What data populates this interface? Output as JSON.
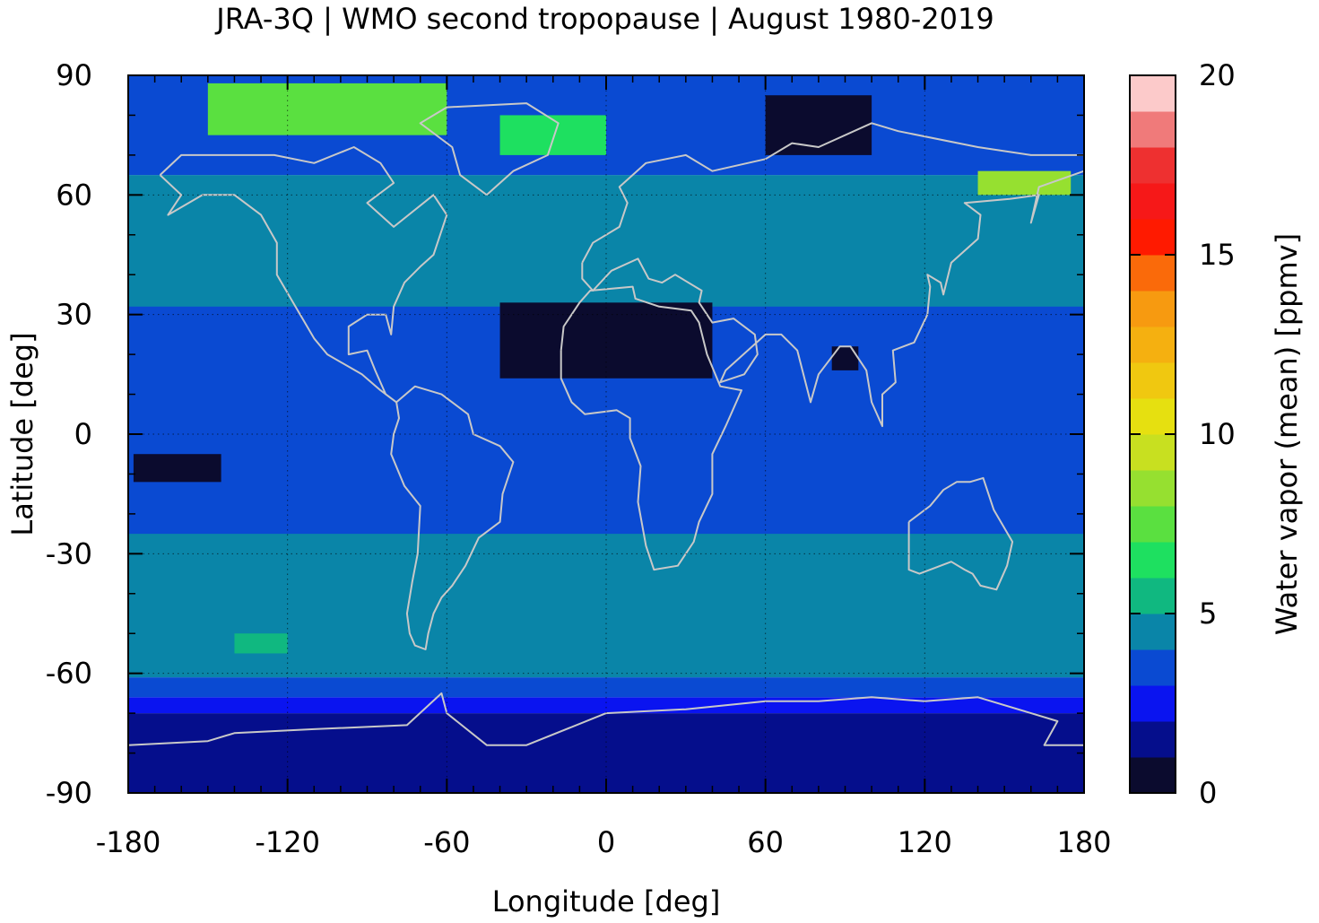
{
  "chart_data": {
    "type": "heatmap",
    "title": "JRA-3Q | WMO second tropopause | August 1980-2019",
    "xlabel": "Longitude [deg]",
    "ylabel": "Latitude [deg]",
    "colorbar_label": "Water vapor (mean) [ppmv]",
    "xlim": [
      -180,
      180
    ],
    "ylim": [
      -90,
      90
    ],
    "xticks": [
      -180,
      -120,
      -60,
      0,
      60,
      120,
      180
    ],
    "yticks": [
      -90,
      -60,
      -30,
      0,
      30,
      60,
      90
    ],
    "colorbar_range": [
      0,
      20
    ],
    "colorbar_ticks": [
      0,
      5,
      10,
      15,
      20
    ],
    "grid": true,
    "colorbar_levels": [
      {
        "min": 0,
        "max": 1,
        "color": "#0b0b2e"
      },
      {
        "min": 1,
        "max": 2,
        "color": "#050e8c"
      },
      {
        "min": 2,
        "max": 3,
        "color": "#0a14f0"
      },
      {
        "min": 3,
        "max": 4,
        "color": "#0a4ad2"
      },
      {
        "min": 4,
        "max": 5,
        "color": "#0a85a8"
      },
      {
        "min": 5,
        "max": 6,
        "color": "#10b880"
      },
      {
        "min": 6,
        "max": 7,
        "color": "#1ee060"
      },
      {
        "min": 7,
        "max": 8,
        "color": "#5ae040"
      },
      {
        "min": 8,
        "max": 9,
        "color": "#96e030"
      },
      {
        "min": 9,
        "max": 10,
        "color": "#c8e020"
      },
      {
        "min": 10,
        "max": 11,
        "color": "#e6e010"
      },
      {
        "min": 11,
        "max": 12,
        "color": "#f0c810"
      },
      {
        "min": 12,
        "max": 13,
        "color": "#f5b010"
      },
      {
        "min": 13,
        "max": 14,
        "color": "#f79a10"
      },
      {
        "min": 14,
        "max": 15,
        "color": "#fa6a0a"
      },
      {
        "min": 15,
        "max": 16,
        "color": "#ff1a00"
      },
      {
        "min": 16,
        "max": 17,
        "color": "#f61818"
      },
      {
        "min": 17,
        "max": 18,
        "color": "#ee3030"
      },
      {
        "min": 18,
        "max": 19,
        "color": "#f07a7a"
      },
      {
        "min": 19,
        "max": 20,
        "color": "#fccaca"
      }
    ],
    "zonal_bands": [
      {
        "lat_min": -90,
        "lat_max": -70,
        "value": 1.5
      },
      {
        "lat_min": -70,
        "lat_max": -66,
        "value": 2.5
      },
      {
        "lat_min": -66,
        "lat_max": -61,
        "value": 3.5
      },
      {
        "lat_min": -61,
        "lat_max": 65,
        "value": 4.5
      },
      {
        "lat_min": 65,
        "lat_max": 90,
        "value": 3.5
      }
    ],
    "regions": [
      {
        "name": "tropical belt",
        "lon": [
          -180,
          180
        ],
        "lat": [
          -25,
          32
        ],
        "value": 3.5
      },
      {
        "name": "north africa arabia",
        "lon": [
          -40,
          40
        ],
        "lat": [
          14,
          33
        ],
        "value": 0.5
      },
      {
        "name": "bay of bengal",
        "lon": [
          85,
          95
        ],
        "lat": [
          16,
          22
        ],
        "value": 0.5
      },
      {
        "name": "tropical pacific south",
        "lon": [
          -178,
          -145
        ],
        "lat": [
          -12,
          -5
        ],
        "value": 0.5
      },
      {
        "name": "north pacific arctic",
        "lon": [
          140,
          175
        ],
        "lat": [
          60,
          66
        ],
        "value": 8.5
      },
      {
        "name": "siberian arctic",
        "lon": [
          60,
          100
        ],
        "lat": [
          70,
          85
        ],
        "value": 0.5
      },
      {
        "name": "canadian arctic",
        "lon": [
          -150,
          -60
        ],
        "lat": [
          75,
          88
        ],
        "value": 7.5
      },
      {
        "name": "greenland sea",
        "lon": [
          -40,
          0
        ],
        "lat": [
          70,
          80
        ],
        "value": 6.5
      },
      {
        "name": "southern pacific",
        "lon": [
          -140,
          -120
        ],
        "lat": [
          -55,
          -50
        ],
        "value": 5.5
      }
    ],
    "coastlines": [
      {
        "name": "north america",
        "points": [
          [
            -168,
            65
          ],
          [
            -160,
            70
          ],
          [
            -140,
            70
          ],
          [
            -125,
            70
          ],
          [
            -110,
            68
          ],
          [
            -95,
            72
          ],
          [
            -85,
            68
          ],
          [
            -80,
            63
          ],
          [
            -90,
            58
          ],
          [
            -80,
            52
          ],
          [
            -65,
            60
          ],
          [
            -60,
            55
          ],
          [
            -65,
            45
          ],
          [
            -70,
            42
          ],
          [
            -76,
            38
          ],
          [
            -80,
            32
          ],
          [
            -81,
            25
          ],
          [
            -83,
            30
          ],
          [
            -90,
            30
          ],
          [
            -97,
            27
          ],
          [
            -97,
            20
          ],
          [
            -90,
            21
          ],
          [
            -87,
            16
          ],
          [
            -83,
            10
          ],
          [
            -79,
            8
          ],
          [
            -85,
            11
          ],
          [
            -92,
            15
          ],
          [
            -105,
            20
          ],
          [
            -110,
            24
          ],
          [
            -117,
            32
          ],
          [
            -124,
            40
          ],
          [
            -124,
            48
          ],
          [
            -130,
            55
          ],
          [
            -140,
            60
          ],
          [
            -152,
            60
          ],
          [
            -165,
            55
          ],
          [
            -160,
            60
          ],
          [
            -168,
            65
          ]
        ]
      },
      {
        "name": "south america",
        "points": [
          [
            -79,
            8
          ],
          [
            -72,
            12
          ],
          [
            -62,
            10
          ],
          [
            -52,
            5
          ],
          [
            -50,
            0
          ],
          [
            -40,
            -3
          ],
          [
            -35,
            -7
          ],
          [
            -39,
            -15
          ],
          [
            -40,
            -22
          ],
          [
            -48,
            -26
          ],
          [
            -53,
            -33
          ],
          [
            -58,
            -38
          ],
          [
            -62,
            -41
          ],
          [
            -65,
            -45
          ],
          [
            -67,
            -50
          ],
          [
            -68,
            -54
          ],
          [
            -72,
            -53
          ],
          [
            -74,
            -50
          ],
          [
            -75,
            -45
          ],
          [
            -73,
            -37
          ],
          [
            -71,
            -30
          ],
          [
            -70,
            -18
          ],
          [
            -76,
            -13
          ],
          [
            -81,
            -5
          ],
          [
            -80,
            0
          ],
          [
            -78,
            4
          ],
          [
            -79,
            8
          ]
        ]
      },
      {
        "name": "africa",
        "points": [
          [
            -17,
            21
          ],
          [
            -16,
            27
          ],
          [
            -10,
            33
          ],
          [
            -6,
            36
          ],
          [
            10,
            37
          ],
          [
            11,
            34
          ],
          [
            20,
            32
          ],
          [
            32,
            31
          ],
          [
            35,
            28
          ],
          [
            38,
            20
          ],
          [
            43,
            12
          ],
          [
            51,
            11
          ],
          [
            45,
            2
          ],
          [
            40,
            -5
          ],
          [
            40,
            -15
          ],
          [
            35,
            -22
          ],
          [
            33,
            -27
          ],
          [
            27,
            -33
          ],
          [
            18,
            -34
          ],
          [
            15,
            -28
          ],
          [
            12,
            -17
          ],
          [
            13,
            -8
          ],
          [
            9,
            -1
          ],
          [
            9,
            4
          ],
          [
            4,
            6
          ],
          [
            -8,
            5
          ],
          [
            -13,
            8
          ],
          [
            -17,
            14
          ],
          [
            -17,
            21
          ]
        ]
      },
      {
        "name": "eurasia",
        "points": [
          [
            -9,
            43
          ],
          [
            -9,
            39
          ],
          [
            -5,
            36
          ],
          [
            2,
            41
          ],
          [
            12,
            44
          ],
          [
            16,
            39
          ],
          [
            21,
            38
          ],
          [
            26,
            40
          ],
          [
            36,
            36
          ],
          [
            35,
            33
          ],
          [
            40,
            28
          ],
          [
            48,
            29
          ],
          [
            56,
            25
          ],
          [
            57,
            20
          ],
          [
            52,
            15
          ],
          [
            43,
            13
          ],
          [
            45,
            16
          ],
          [
            60,
            25
          ],
          [
            66,
            25
          ],
          [
            72,
            21
          ],
          [
            77,
            8
          ],
          [
            80,
            15
          ],
          [
            88,
            22
          ],
          [
            92,
            22
          ],
          [
            98,
            16
          ],
          [
            100,
            8
          ],
          [
            104,
            2
          ],
          [
            104,
            10
          ],
          [
            109,
            13
          ],
          [
            108,
            21
          ],
          [
            116,
            23
          ],
          [
            121,
            30
          ],
          [
            122,
            37
          ],
          [
            121,
            40
          ],
          [
            126,
            38
          ],
          [
            127,
            35
          ],
          [
            130,
            43
          ],
          [
            140,
            49
          ],
          [
            141,
            55
          ],
          [
            135,
            58
          ],
          [
            152,
            59
          ],
          [
            163,
            60
          ],
          [
            160,
            53
          ],
          [
            163,
            62
          ],
          [
            180,
            66
          ],
          [
            180,
            70
          ],
          [
            160,
            70
          ],
          [
            140,
            72
          ],
          [
            110,
            76
          ],
          [
            100,
            78
          ],
          [
            80,
            72
          ],
          [
            70,
            73
          ],
          [
            60,
            69
          ],
          [
            40,
            66
          ],
          [
            30,
            70
          ],
          [
            15,
            68
          ],
          [
            5,
            62
          ],
          [
            8,
            58
          ],
          [
            5,
            52
          ],
          [
            -5,
            48
          ],
          [
            -9,
            43
          ]
        ]
      },
      {
        "name": "australia",
        "points": [
          [
            114,
            -22
          ],
          [
            114,
            -34
          ],
          [
            118,
            -35
          ],
          [
            130,
            -32
          ],
          [
            135,
            -34
          ],
          [
            138,
            -35
          ],
          [
            141,
            -38
          ],
          [
            147,
            -39
          ],
          [
            151,
            -33
          ],
          [
            153,
            -27
          ],
          [
            146,
            -19
          ],
          [
            142,
            -11
          ],
          [
            137,
            -12
          ],
          [
            132,
            -12
          ],
          [
            127,
            -14
          ],
          [
            122,
            -18
          ],
          [
            114,
            -22
          ]
        ]
      },
      {
        "name": "greenland",
        "points": [
          [
            -45,
            60
          ],
          [
            -55,
            65
          ],
          [
            -58,
            72
          ],
          [
            -70,
            78
          ],
          [
            -60,
            82
          ],
          [
            -30,
            83
          ],
          [
            -18,
            78
          ],
          [
            -22,
            70
          ],
          [
            -35,
            66
          ],
          [
            -45,
            60
          ]
        ]
      },
      {
        "name": "antarctica",
        "points": [
          [
            -180,
            -78
          ],
          [
            -150,
            -77
          ],
          [
            -140,
            -75
          ],
          [
            -110,
            -74
          ],
          [
            -75,
            -73
          ],
          [
            -62,
            -65
          ],
          [
            -60,
            -70
          ],
          [
            -45,
            -78
          ],
          [
            -30,
            -78
          ],
          [
            0,
            -70
          ],
          [
            30,
            -69
          ],
          [
            60,
            -67
          ],
          [
            80,
            -67
          ],
          [
            100,
            -66
          ],
          [
            120,
            -67
          ],
          [
            140,
            -66
          ],
          [
            160,
            -70
          ],
          [
            170,
            -72
          ],
          [
            165,
            -78
          ],
          [
            180,
            -78
          ]
        ]
      }
    ]
  }
}
